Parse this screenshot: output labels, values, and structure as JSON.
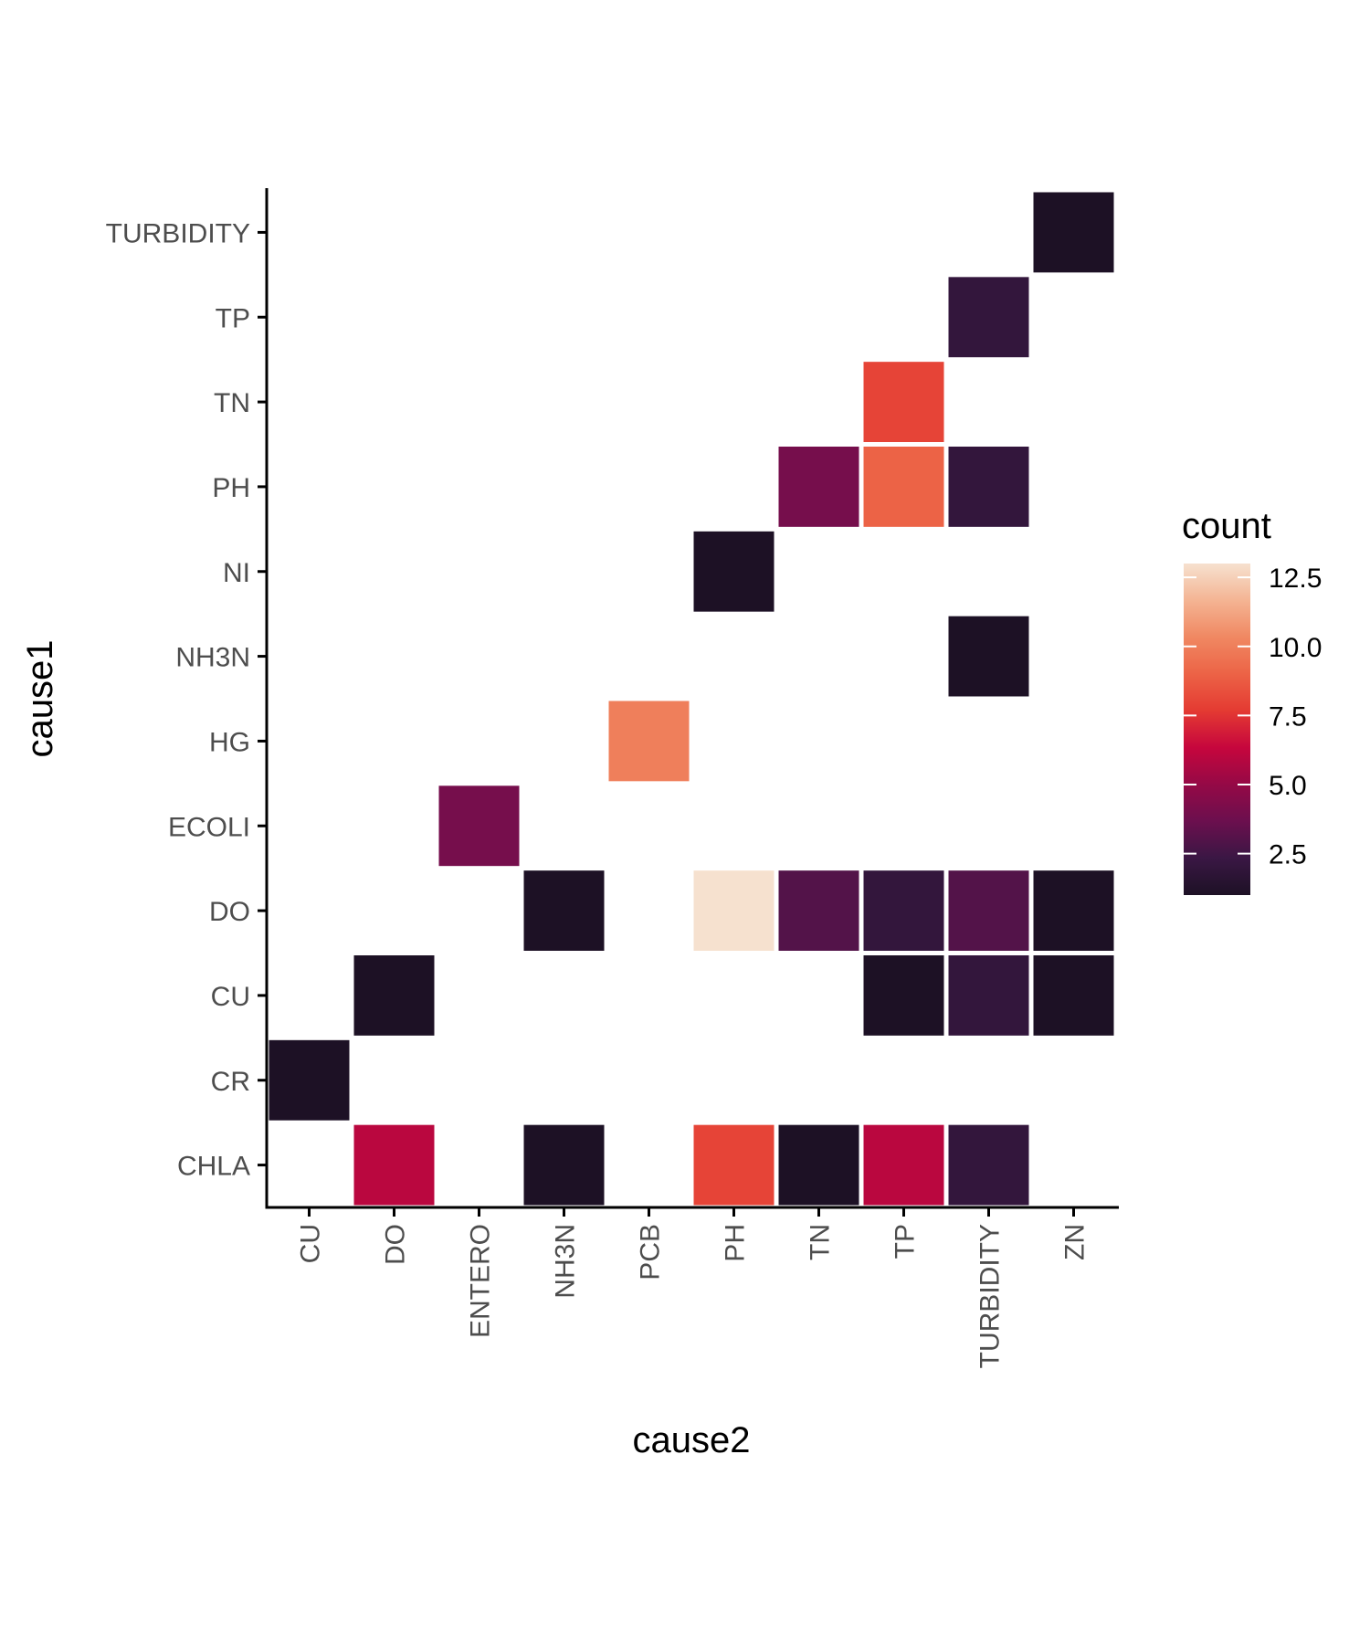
{
  "chart_data": {
    "type": "heatmap",
    "xlabel": "cause2",
    "ylabel": "cause1",
    "x_categories": [
      "CU",
      "DO",
      "ENTERO",
      "NH3N",
      "PCB",
      "PH",
      "TN",
      "TP",
      "TURBIDITY",
      "ZN"
    ],
    "y_categories": [
      "CHLA",
      "CR",
      "CU",
      "DO",
      "ECOLI",
      "HG",
      "NH3N",
      "NI",
      "PH",
      "TN",
      "TP",
      "TURBIDITY"
    ],
    "cells": [
      {
        "x": "ZN",
        "y": "TURBIDITY",
        "value": 1
      },
      {
        "x": "TURBIDITY",
        "y": "TP",
        "value": 2
      },
      {
        "x": "TP",
        "y": "TN",
        "value": 8
      },
      {
        "x": "TN",
        "y": "PH",
        "value": 4
      },
      {
        "x": "TP",
        "y": "PH",
        "value": 9
      },
      {
        "x": "TURBIDITY",
        "y": "PH",
        "value": 2
      },
      {
        "x": "PH",
        "y": "NI",
        "value": 1
      },
      {
        "x": "TURBIDITY",
        "y": "NH3N",
        "value": 1
      },
      {
        "x": "PCB",
        "y": "HG",
        "value": 10
      },
      {
        "x": "ENTERO",
        "y": "ECOLI",
        "value": 4
      },
      {
        "x": "NH3N",
        "y": "DO",
        "value": 1
      },
      {
        "x": "PH",
        "y": "DO",
        "value": 13
      },
      {
        "x": "TN",
        "y": "DO",
        "value": 3
      },
      {
        "x": "TP",
        "y": "DO",
        "value": 2
      },
      {
        "x": "TURBIDITY",
        "y": "DO",
        "value": 3
      },
      {
        "x": "ZN",
        "y": "DO",
        "value": 1
      },
      {
        "x": "DO",
        "y": "CU",
        "value": 1
      },
      {
        "x": "TP",
        "y": "CU",
        "value": 1
      },
      {
        "x": "TURBIDITY",
        "y": "CU",
        "value": 2
      },
      {
        "x": "ZN",
        "y": "CU",
        "value": 1
      },
      {
        "x": "CU",
        "y": "CR",
        "value": 1
      },
      {
        "x": "DO",
        "y": "CHLA",
        "value": 6
      },
      {
        "x": "NH3N",
        "y": "CHLA",
        "value": 1
      },
      {
        "x": "PH",
        "y": "CHLA",
        "value": 8
      },
      {
        "x": "TN",
        "y": "CHLA",
        "value": 1
      },
      {
        "x": "TP",
        "y": "CHLA",
        "value": 6
      },
      {
        "x": "TURBIDITY",
        "y": "CHLA",
        "value": 2
      }
    ],
    "legend": {
      "title": "count",
      "placement": "right",
      "range": [
        1,
        13
      ],
      "ticks": [
        2.5,
        5.0,
        7.5,
        10.0,
        12.5
      ],
      "tick_labels": [
        "2.5",
        "5.0",
        "7.5",
        "10.0",
        "12.5"
      ],
      "palette": [
        "#1d1125",
        "#3a1744",
        "#6b0f4e",
        "#950946",
        "#c6063d",
        "#e43a32",
        "#ec6346",
        "#f08862",
        "#f4b493",
        "#f6e1cf"
      ]
    },
    "grid": false
  }
}
